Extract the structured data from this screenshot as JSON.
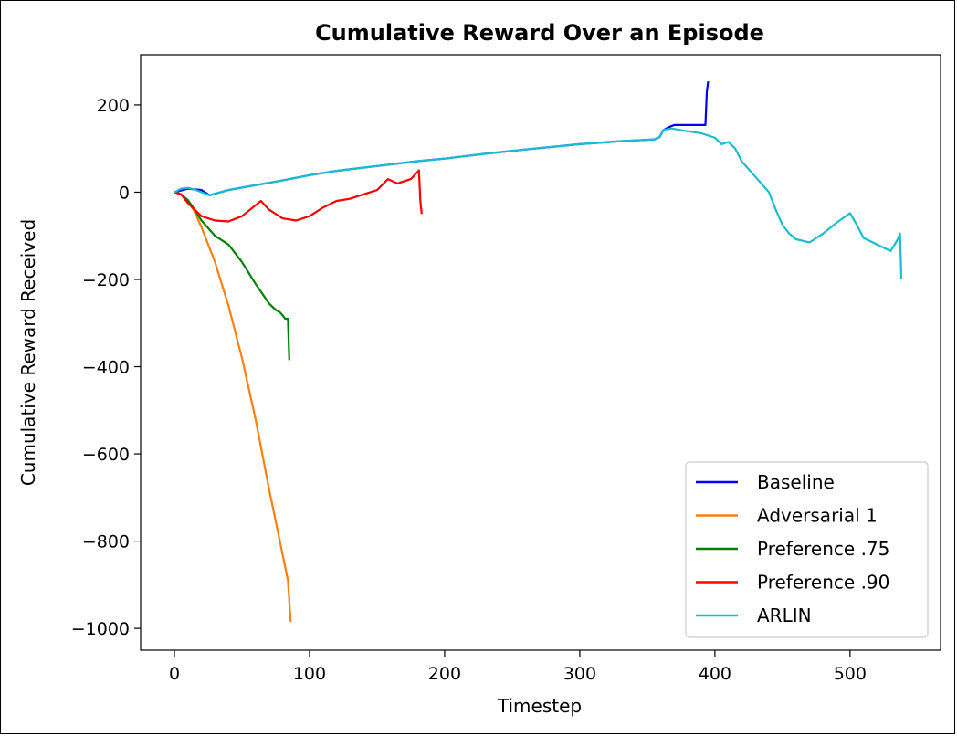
{
  "chart_data": {
    "type": "line",
    "title": "Cumulative Reward Over an Episode",
    "xlabel": "Timestep",
    "ylabel": "Cumulative Reward Received",
    "xlim": [
      -25,
      567
    ],
    "ylim": [
      -1050,
      315
    ],
    "xticks": [
      0,
      100,
      200,
      300,
      400,
      500
    ],
    "yticks": [
      -1000,
      -800,
      -600,
      -400,
      -200,
      0,
      200
    ],
    "ytick_labels": [
      "−1000",
      "−800",
      "−600",
      "−400",
      "−200",
      "0",
      "200"
    ],
    "grid": false,
    "legend_position": "lower right",
    "series": [
      {
        "name": "Baseline",
        "color": "#0000ff",
        "x": [
          0,
          10,
          20,
          26,
          40,
          60,
          80,
          100,
          120,
          150,
          180,
          200,
          230,
          260,
          300,
          330,
          355,
          359,
          362,
          368,
          370,
          380,
          393,
          394,
          395
        ],
        "y": [
          0,
          8,
          5,
          -7,
          5,
          16,
          27,
          39,
          49,
          60,
          71,
          77,
          88,
          98,
          110,
          117,
          121,
          126,
          143,
          152,
          154,
          154,
          154,
          230,
          254
        ]
      },
      {
        "name": "Adversarial 1",
        "color": "#ff7f0e",
        "x": [
          0,
          5,
          10,
          15,
          20,
          30,
          40,
          50,
          60,
          70,
          80,
          84,
          86
        ],
        "y": [
          0,
          -5,
          -20,
          -45,
          -80,
          -160,
          -260,
          -380,
          -520,
          -680,
          -830,
          -890,
          -985
        ]
      },
      {
        "name": "Preference .75",
        "color": "#008000",
        "x": [
          0,
          5,
          10,
          15,
          20,
          30,
          40,
          50,
          60,
          70,
          75,
          78,
          80,
          82,
          84,
          85
        ],
        "y": [
          0,
          -5,
          -18,
          -40,
          -65,
          -100,
          -120,
          -160,
          -210,
          -255,
          -270,
          -275,
          -282,
          -290,
          -290,
          -385
        ]
      },
      {
        "name": "Preference .90",
        "color": "#ff0000",
        "x": [
          0,
          5,
          10,
          20,
          30,
          40,
          50,
          60,
          64,
          70,
          80,
          90,
          100,
          110,
          120,
          130,
          140,
          150,
          158,
          165,
          175,
          181,
          182,
          183
        ],
        "y": [
          0,
          -5,
          -25,
          -55,
          -65,
          -67,
          -55,
          -30,
          -20,
          -40,
          -60,
          -65,
          -55,
          -35,
          -20,
          -15,
          -5,
          5,
          30,
          20,
          30,
          50,
          -20,
          -50
        ]
      },
      {
        "name": "ARLIN",
        "color": "#17becf",
        "x": [
          0,
          5,
          10,
          15,
          20,
          26,
          40,
          60,
          80,
          100,
          120,
          150,
          180,
          200,
          230,
          260,
          300,
          330,
          355,
          359,
          362,
          368,
          375,
          390,
          400,
          405,
          410,
          415,
          420,
          430,
          440,
          445,
          450,
          455,
          460,
          470,
          480,
          490,
          500,
          505,
          510,
          520,
          530,
          535,
          537,
          538
        ],
        "y": [
          0,
          8,
          10,
          6,
          0,
          -7,
          5,
          16,
          27,
          39,
          49,
          60,
          71,
          77,
          88,
          98,
          110,
          117,
          121,
          126,
          143,
          146,
          142,
          135,
          125,
          110,
          115,
          100,
          70,
          35,
          0,
          -40,
          -75,
          -95,
          -108,
          -115,
          -95,
          -70,
          -48,
          -75,
          -105,
          -120,
          -135,
          -110,
          -95,
          -200
        ]
      }
    ]
  }
}
